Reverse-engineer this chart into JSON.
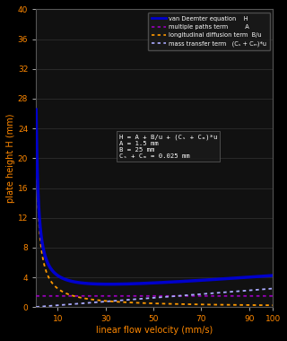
{
  "A": 1.5,
  "B": 25,
  "C": 0.025,
  "u_min": 1,
  "u_max": 100,
  "xlim": [
    1,
    100
  ],
  "ylim": [
    0,
    40
  ],
  "xticks": [
    10,
    30,
    50,
    70,
    90,
    100
  ],
  "yticks": [
    0,
    4,
    8,
    12,
    16,
    20,
    24,
    28,
    32,
    36,
    40
  ],
  "xlabel": "linear flow velocity (mm/s)",
  "ylabel": "plate height H (mm)",
  "bg_color": "#000000",
  "ax_color": "#111111",
  "color_H": "#0000cc",
  "color_A": "#9900bb",
  "color_B": "#ff9900",
  "color_C": "#aaaaff",
  "spine_color": "#555555",
  "tick_color": "#aaaaaa",
  "axis_label_color": "#ff8800",
  "text_color": "#ffffff",
  "legend_bg": "#1a1a1a",
  "legend_edge": "#555555"
}
